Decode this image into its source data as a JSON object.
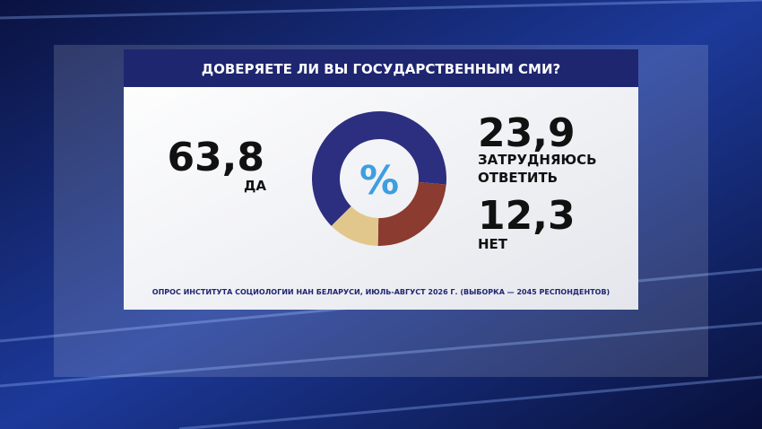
{
  "chart_data": {
    "type": "donut",
    "title": "ДОВЕРЯЕТЕ ЛИ ВЫ ГОСУДАРСТВЕННЫМ СМИ?",
    "center_label": "%",
    "categories": [
      "ДА",
      "ЗАТРУДНЯЮСЬ ОТВЕТИТЬ",
      "НЕТ"
    ],
    "values": [
      63.8,
      23.9,
      12.3
    ],
    "value_labels": [
      "63,8",
      "23,9",
      "12,3"
    ],
    "colors": [
      "#2c2f80",
      "#8b3b2f",
      "#e2c78c"
    ],
    "source": "ОПРОС ИНСТИТУТА СОЦИОЛОГИИ НАН БЕЛАРУСИ, ИЮЛЬ-АВГУСТ 2026 Г. (ВЫБОРКА — 2045 РЕСПОНДЕНТОВ)"
  }
}
